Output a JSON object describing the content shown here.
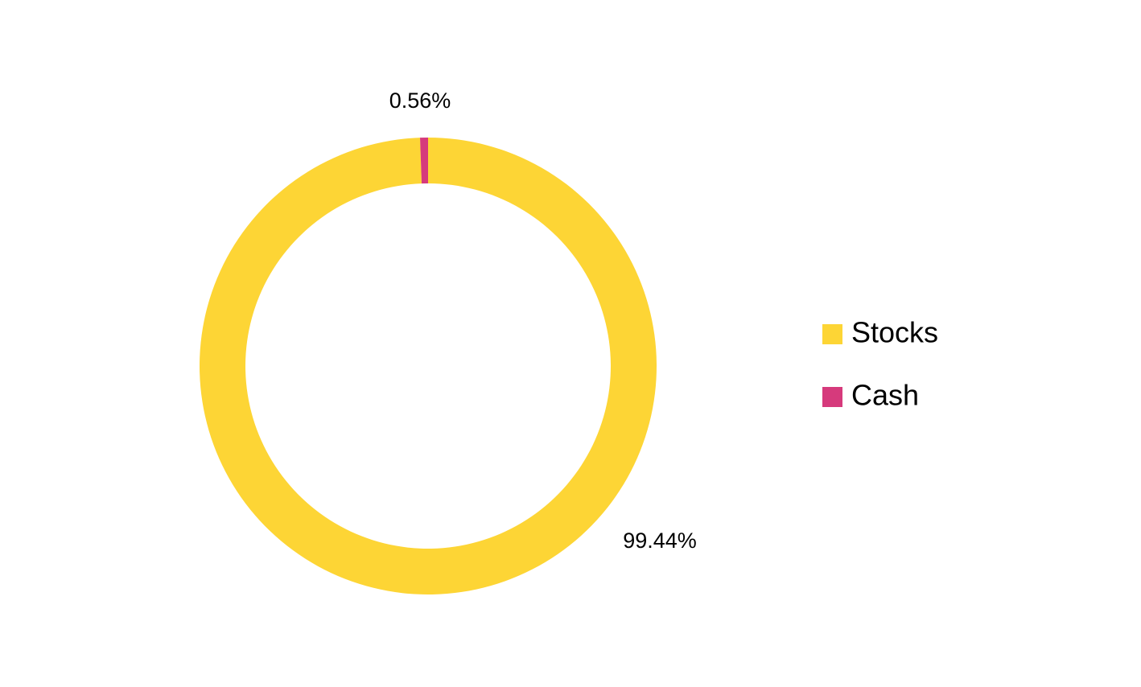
{
  "chart_data": {
    "type": "doughnut",
    "categories": [
      "Stocks",
      "Cash"
    ],
    "values": [
      99.44,
      0.56
    ],
    "value_labels": [
      "99.44%",
      "0.56%"
    ],
    "colors": [
      "#FDD535",
      "#D63A7C"
    ],
    "legend": "right"
  }
}
